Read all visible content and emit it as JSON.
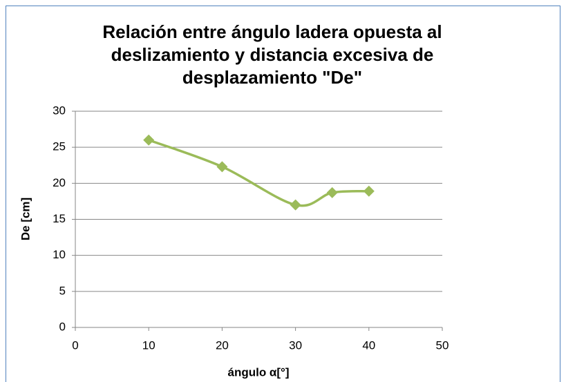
{
  "chart_data": {
    "type": "line",
    "title": "Relación entre ángulo ladera opuesta al deslizamiento y distancia excesiva de desplazamiento \"De\"",
    "x_label": "ángulo α[°]",
    "y_label": "De [cm]",
    "x": [
      10,
      20,
      30,
      35,
      40
    ],
    "series": [
      {
        "name": "De",
        "color": "#9bbb59",
        "values": [
          26,
          22.3,
          17,
          18.7,
          18.9
        ]
      }
    ],
    "xlim": [
      0,
      50
    ],
    "xticks": [
      0,
      10,
      20,
      30,
      40,
      50
    ],
    "ylim": [
      0,
      30
    ],
    "yticks": [
      0,
      5,
      10,
      15,
      20,
      25,
      30
    ],
    "grid": true,
    "smooth": true
  }
}
